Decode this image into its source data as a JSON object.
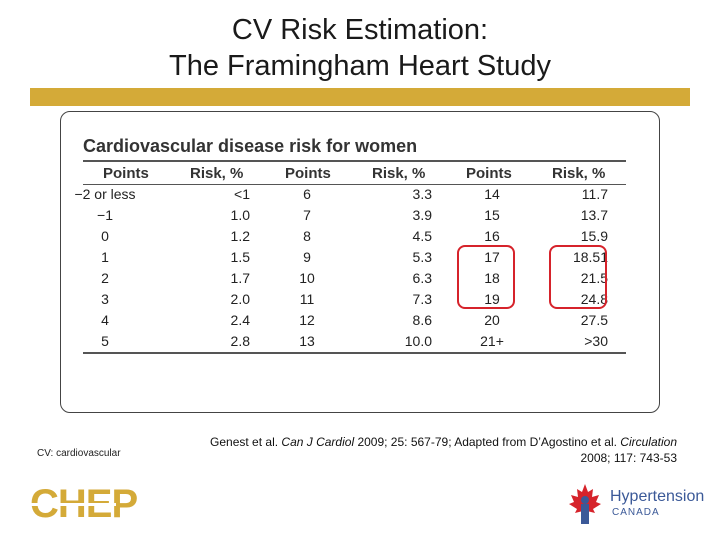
{
  "slide": {
    "title_line1": "CV Risk Estimation:",
    "title_line2": "The Framingham Heart Study"
  },
  "table": {
    "title": "Cardiovascular disease risk for women",
    "headers": [
      "Points",
      "Risk, %",
      "Points",
      "Risk, %",
      "Points",
      "Risk, %"
    ],
    "rows": [
      [
        "−2 or less",
        "<1",
        "6",
        "3.3",
        "14",
        "11.7"
      ],
      [
        "−1",
        "1.0",
        "7",
        "3.9",
        "15",
        "13.7"
      ],
      [
        "0",
        "1.2",
        "8",
        "4.5",
        "16",
        "15.9"
      ],
      [
        "1",
        "1.5",
        "9",
        "5.3",
        "17",
        "18.51"
      ],
      [
        "2",
        "1.7",
        "10",
        "6.3",
        "18",
        "21.5"
      ],
      [
        "3",
        "2.0",
        "11",
        "7.3",
        "19",
        "24.8"
      ],
      [
        "4",
        "2.4",
        "12",
        "8.6",
        "20",
        "27.5"
      ],
      [
        "5",
        "2.8",
        "13",
        "10.0",
        "21+",
        ">30"
      ]
    ],
    "highlight_color": "#d6232b"
  },
  "footnote": "CV: cardiovascular",
  "citation": {
    "prefix": "Genest et al. ",
    "journal1": "Can J Cardiol",
    "middle": " 2009; 25: 567-79; Adapted from D’Agostino et al. ",
    "journal2": "Circulation",
    "suffix": "2008; 117: 743-53"
  },
  "logos": {
    "chep": "CHEP",
    "hc_line1": "Hypertension",
    "hc_line2": "CANADA"
  },
  "colors": {
    "gold": "#d4aa38",
    "red": "#d6232b",
    "blue": "#3b5998"
  }
}
